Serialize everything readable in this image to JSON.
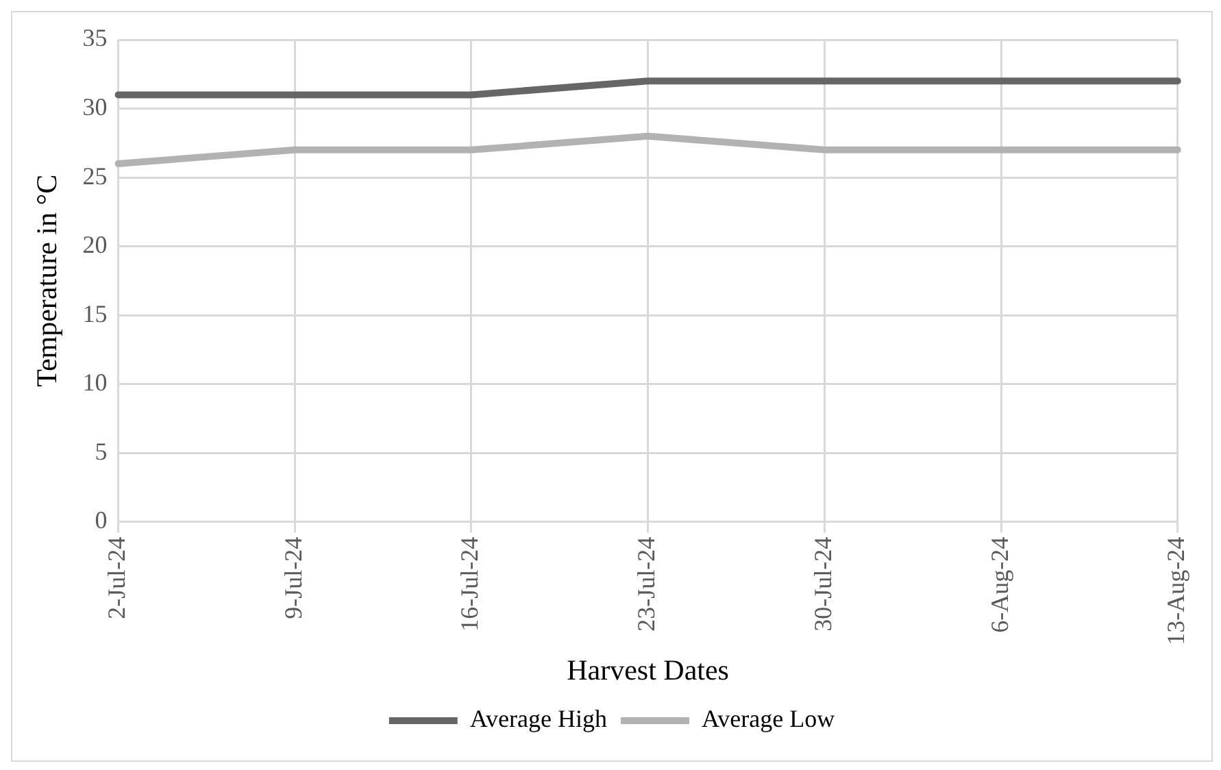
{
  "chart_data": {
    "type": "line",
    "xlabel": "Harvest Dates",
    "ylabel": "Temperature in °C",
    "categories": [
      "2-Jul-24",
      "9-Jul-24",
      "16-Jul-24",
      "23-Jul-24",
      "30-Jul-24",
      "6-Aug-24",
      "13-Aug-24"
    ],
    "series": [
      {
        "name": "Average High",
        "color": "#666666",
        "values": [
          31,
          31,
          31,
          32,
          32,
          32,
          32
        ]
      },
      {
        "name": "Average Low",
        "color": "#b2b2b2",
        "values": [
          26,
          27,
          27,
          28,
          27,
          27,
          27
        ]
      }
    ],
    "ylim": [
      0,
      35
    ],
    "yticks": [
      0,
      5,
      10,
      15,
      20,
      25,
      30,
      35
    ],
    "grid": true,
    "legend": "bottom",
    "marker": "none",
    "line_style": "solid"
  }
}
